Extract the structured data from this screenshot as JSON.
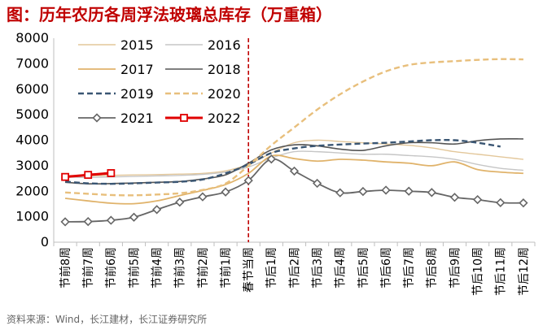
{
  "title": "图：历年农历各周浮法玻璃总库存（万重箱）",
  "source": "资料来源：Wind，长江建材，长江证券研究所",
  "chart_data": {
    "type": "line",
    "x": [
      "节前8周",
      "节前7周",
      "节前6周",
      "节前5周",
      "节前4周",
      "节前3周",
      "节前2周",
      "节前1周",
      "春节当周",
      "节后1周",
      "节后2周",
      "节后3周",
      "节后4周",
      "节后5周",
      "节后6周",
      "节后7周",
      "节后8周",
      "节后9周",
      "节后10周",
      "节后11周",
      "节后12周"
    ],
    "ylim": [
      0,
      8000
    ],
    "yticks": [
      0,
      1000,
      2000,
      3000,
      4000,
      5000,
      6000,
      7000,
      8000
    ],
    "vline_at": "春节当周",
    "legend_position": "top-left",
    "series": [
      {
        "name": "2015",
        "color": "#e3c79a",
        "style": "solid",
        "width": 1.4,
        "values": [
          2620,
          2600,
          2620,
          2640,
          2650,
          2670,
          2700,
          2800,
          3050,
          3500,
          3900,
          4000,
          3950,
          3900,
          3850,
          3800,
          3700,
          3550,
          3450,
          3350,
          3250
        ]
      },
      {
        "name": "2016",
        "color": "#c6c6c6",
        "style": "solid",
        "width": 1.4,
        "values": [
          2560,
          2540,
          2560,
          2580,
          2600,
          2620,
          2660,
          2750,
          2950,
          3300,
          3550,
          3550,
          3500,
          3450,
          3450,
          3400,
          3350,
          3250,
          3050,
          2900,
          2820
        ]
      },
      {
        "name": "2017",
        "color": "#e0b36b",
        "style": "solid",
        "width": 1.8,
        "values": [
          1720,
          1620,
          1530,
          1510,
          1620,
          1830,
          2030,
          2260,
          2700,
          3380,
          3280,
          3180,
          3250,
          3220,
          3150,
          3100,
          3000,
          3150,
          2850,
          2750,
          2700
        ]
      },
      {
        "name": "2018",
        "color": "#555555",
        "style": "solid",
        "width": 1.6,
        "values": [
          2350,
          2290,
          2300,
          2320,
          2350,
          2380,
          2480,
          2640,
          3100,
          3620,
          3820,
          3780,
          3650,
          3600,
          3780,
          3900,
          3900,
          3850,
          3980,
          4050,
          4050
        ]
      },
      {
        "name": "2019",
        "color": "#3a5673",
        "style": "dash",
        "width": 2.4,
        "values": [
          2380,
          2310,
          2290,
          2310,
          2340,
          2370,
          2460,
          2700,
          3050,
          3500,
          3680,
          3780,
          3830,
          3870,
          3900,
          3950,
          4000,
          4000,
          3900,
          3750,
          null
        ]
      },
      {
        "name": "2020",
        "color": "#e8bf7c",
        "style": "dash",
        "width": 2.4,
        "values": [
          1950,
          1900,
          1850,
          1840,
          1870,
          1920,
          2050,
          2300,
          3000,
          3800,
          4500,
          5200,
          5800,
          6300,
          6700,
          6950,
          7050,
          7100,
          7150,
          7180,
          7170
        ]
      },
      {
        "name": "2021",
        "color": "#666666",
        "style": "diamond",
        "width": 1.8,
        "values": [
          800,
          810,
          860,
          980,
          1280,
          1570,
          1780,
          1970,
          2420,
          3260,
          2790,
          2310,
          1940,
          1990,
          2040,
          2000,
          1950,
          1760,
          1670,
          1550,
          1540
        ]
      },
      {
        "name": "2022",
        "color": "#e00000",
        "style": "square",
        "width": 3,
        "values": [
          2560,
          2640,
          2710,
          null,
          null,
          null,
          null,
          null,
          null,
          null,
          null,
          null,
          null,
          null,
          null,
          null,
          null,
          null,
          null,
          null,
          null
        ]
      }
    ]
  }
}
